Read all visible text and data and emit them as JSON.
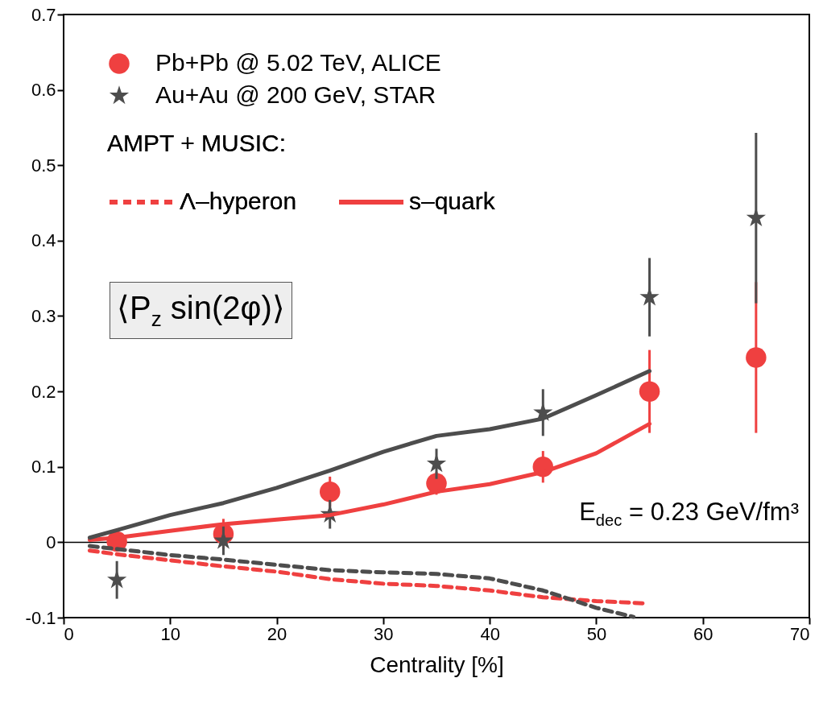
{
  "chart_data": {
    "type": "scatter",
    "xlabel": "Centrality [%]",
    "xlim": [
      0,
      70
    ],
    "xticks": [
      0,
      10,
      20,
      30,
      40,
      50,
      60,
      70
    ],
    "ylim": [
      -0.1,
      0.7
    ],
    "yticks": [
      -0.1,
      0,
      0.1,
      0.2,
      0.3,
      0.4,
      0.5,
      0.6,
      0.7
    ],
    "grid": false,
    "legend": "top left",
    "legend_title": "AMPT + MUSIC:",
    "ref_lines": [
      {
        "axis": "y",
        "value": 0,
        "color": "#000000"
      }
    ],
    "annotations": [
      "⟨P$_{z}$ sin(2φ)⟩",
      "E$_{dec}$ = 0.23 GeV/fm³"
    ],
    "series": [
      {
        "name": "Pb+Pb @ 5.02 TeV, ALICE",
        "marker": "circle",
        "color": "#ef4040",
        "x": [
          5,
          15,
          25,
          35,
          45,
          55,
          65
        ],
        "values": [
          0.001,
          0.011,
          0.067,
          0.078,
          0.1,
          0.2,
          0.245
        ],
        "errors": [
          null,
          0.02,
          0.02,
          0.015,
          0.021,
          0.055,
          0.1
        ]
      },
      {
        "name": "Au+Au @ 200 GeV, STAR",
        "marker": "star",
        "color": "#4d4d4d",
        "x": [
          5,
          15,
          25,
          35,
          45,
          55,
          65
        ],
        "values": [
          -0.05,
          0.002,
          0.037,
          0.104,
          0.172,
          0.325,
          0.43
        ],
        "errors": [
          0.025,
          0.019,
          0.019,
          0.02,
          0.031,
          0.052,
          0.113
        ]
      },
      {
        "name": "Λ–hyperon",
        "type": "line",
        "line_style": "dashed",
        "color": "#ef4040",
        "x": [
          2.45,
          5,
          10,
          15,
          20,
          25,
          30,
          35,
          40,
          45,
          50,
          54.4
        ],
        "values": [
          -0.011,
          -0.016,
          -0.024,
          -0.032,
          -0.039,
          -0.049,
          -0.055,
          -0.058,
          -0.064,
          -0.073,
          -0.078,
          -0.081
        ]
      },
      {
        "name": "s–quark",
        "type": "line",
        "line_style": "solid",
        "color": "#ef4040",
        "x": [
          2.45,
          5,
          10,
          15,
          20,
          25,
          30,
          35,
          40,
          45,
          50,
          55
        ],
        "values": [
          0.003,
          0.006,
          0.015,
          0.024,
          0.03,
          0.036,
          0.05,
          0.067,
          0.077,
          0.093,
          0.118,
          0.157
        ]
      },
      {
        "type": "line",
        "line_style": "dashed",
        "color": "#4d4d4d",
        "x": [
          2.45,
          5,
          10,
          15,
          20,
          25,
          30,
          35,
          40,
          45,
          50,
          53.5
        ],
        "values": [
          -0.005,
          -0.009,
          -0.017,
          -0.023,
          -0.03,
          -0.037,
          -0.04,
          -0.042,
          -0.048,
          -0.064,
          -0.087,
          -0.099
        ]
      },
      {
        "type": "line",
        "line_style": "solid",
        "color": "#4d4d4d",
        "x": [
          2.45,
          5,
          10,
          15,
          20,
          25,
          30,
          35,
          40,
          45,
          50,
          55
        ],
        "values": [
          0.006,
          0.016,
          0.036,
          0.052,
          0.072,
          0.095,
          0.12,
          0.141,
          0.15,
          0.164,
          0.195,
          0.227
        ]
      }
    ]
  }
}
